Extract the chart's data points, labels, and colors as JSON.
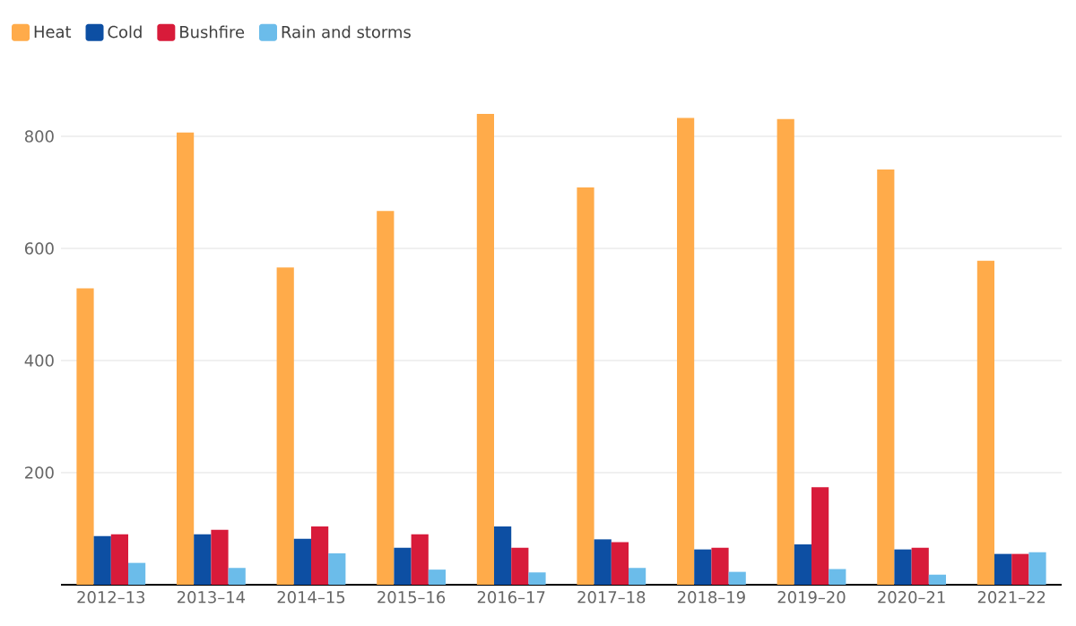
{
  "chart_data": {
    "type": "bar",
    "categories": [
      "2012–13",
      "2013–14",
      "2014–15",
      "2015–16",
      "2016–17",
      "2017–18",
      "2018–19",
      "2019–20",
      "2020–21",
      "2021–22"
    ],
    "series": [
      {
        "name": "Heat",
        "color": "#ffab4a",
        "values": [
          529,
          807,
          566,
          667,
          840,
          709,
          833,
          831,
          741,
          578
        ]
      },
      {
        "name": "Cold",
        "color": "#0d4fa3",
        "values": [
          87,
          90,
          82,
          66,
          104,
          81,
          63,
          72,
          63,
          55
        ]
      },
      {
        "name": "Bushfire",
        "color": "#d81b3a",
        "values": [
          90,
          98,
          104,
          90,
          66,
          76,
          66,
          174,
          66,
          55
        ]
      },
      {
        "name": "Rain and storms",
        "color": "#6bbcea",
        "values": [
          39,
          30,
          56,
          27,
          22,
          30,
          23,
          28,
          18,
          58
        ]
      }
    ],
    "ylim": [
      0,
      840
    ],
    "yticks": [
      200,
      400,
      600,
      800
    ],
    "grid": "y",
    "legend": "top left"
  }
}
